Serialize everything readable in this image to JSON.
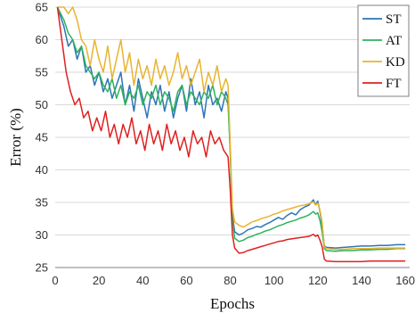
{
  "chart_data": {
    "type": "line",
    "title": "",
    "xlabel": "Epochs",
    "ylabel": "Error (%)",
    "xlim": [
      0,
      162
    ],
    "ylim": [
      25,
      65
    ],
    "xticks": [
      0,
      20,
      40,
      60,
      80,
      100,
      120,
      140,
      160
    ],
    "yticks": [
      25,
      30,
      35,
      40,
      45,
      50,
      55,
      60,
      65
    ],
    "grid": "horizontal",
    "legend_position": "top-right",
    "series": [
      {
        "name": "ST",
        "color": "#2e75b6",
        "points": [
          [
            1,
            65
          ],
          [
            4,
            62
          ],
          [
            6,
            59
          ],
          [
            8,
            60
          ],
          [
            10,
            57
          ],
          [
            12,
            59
          ],
          [
            14,
            55
          ],
          [
            16,
            56
          ],
          [
            18,
            53
          ],
          [
            20,
            55
          ],
          [
            22,
            52
          ],
          [
            24,
            54
          ],
          [
            26,
            51
          ],
          [
            28,
            53
          ],
          [
            30,
            55
          ],
          [
            32,
            50
          ],
          [
            34,
            53
          ],
          [
            36,
            49
          ],
          [
            38,
            54
          ],
          [
            40,
            51
          ],
          [
            42,
            48
          ],
          [
            44,
            52
          ],
          [
            46,
            50
          ],
          [
            48,
            53
          ],
          [
            50,
            49
          ],
          [
            52,
            52
          ],
          [
            54,
            48
          ],
          [
            56,
            51
          ],
          [
            58,
            53
          ],
          [
            60,
            49
          ],
          [
            62,
            54
          ],
          [
            64,
            50
          ],
          [
            66,
            52
          ],
          [
            68,
            48
          ],
          [
            70,
            53
          ],
          [
            72,
            50
          ],
          [
            74,
            51
          ],
          [
            76,
            49
          ],
          [
            78,
            52
          ],
          [
            79,
            51
          ],
          [
            80,
            43
          ],
          [
            81,
            33
          ],
          [
            82,
            30.5
          ],
          [
            84,
            30
          ],
          [
            86,
            30.3
          ],
          [
            88,
            30.8
          ],
          [
            90,
            31
          ],
          [
            92,
            31.3
          ],
          [
            94,
            31.2
          ],
          [
            96,
            31.6
          ],
          [
            98,
            31.9
          ],
          [
            100,
            32.3
          ],
          [
            102,
            32.7
          ],
          [
            104,
            32.4
          ],
          [
            106,
            33
          ],
          [
            108,
            33.4
          ],
          [
            110,
            33.1
          ],
          [
            112,
            33.9
          ],
          [
            114,
            34.3
          ],
          [
            116,
            34.6
          ],
          [
            118,
            35.4
          ],
          [
            119,
            34.6
          ],
          [
            120,
            35.2
          ],
          [
            121,
            33.6
          ],
          [
            122,
            31.5
          ],
          [
            123,
            28.3
          ],
          [
            124,
            28.1
          ],
          [
            128,
            28.0
          ],
          [
            132,
            28.1
          ],
          [
            136,
            28.2
          ],
          [
            140,
            28.3
          ],
          [
            144,
            28.3
          ],
          [
            148,
            28.4
          ],
          [
            152,
            28.4
          ],
          [
            156,
            28.5
          ],
          [
            160,
            28.5
          ]
        ]
      },
      {
        "name": "AT",
        "color": "#2db35a",
        "points": [
          [
            1,
            65
          ],
          [
            4,
            63
          ],
          [
            6,
            61
          ],
          [
            8,
            60
          ],
          [
            10,
            58
          ],
          [
            12,
            59
          ],
          [
            14,
            56
          ],
          [
            16,
            55
          ],
          [
            18,
            54
          ],
          [
            20,
            55
          ],
          [
            22,
            53
          ],
          [
            24,
            52
          ],
          [
            26,
            54
          ],
          [
            28,
            51
          ],
          [
            30,
            53
          ],
          [
            32,
            50
          ],
          [
            34,
            52
          ],
          [
            36,
            51
          ],
          [
            38,
            53
          ],
          [
            40,
            50
          ],
          [
            42,
            52
          ],
          [
            44,
            51
          ],
          [
            46,
            53
          ],
          [
            48,
            50
          ],
          [
            50,
            52
          ],
          [
            52,
            51
          ],
          [
            54,
            49
          ],
          [
            56,
            52
          ],
          [
            58,
            53
          ],
          [
            60,
            50
          ],
          [
            62,
            52
          ],
          [
            64,
            51
          ],
          [
            66,
            50
          ],
          [
            68,
            52
          ],
          [
            70,
            51
          ],
          [
            72,
            53
          ],
          [
            74,
            50
          ],
          [
            76,
            52
          ],
          [
            78,
            51
          ],
          [
            79,
            50
          ],
          [
            80,
            43
          ],
          [
            81,
            32.5
          ],
          [
            82,
            29.5
          ],
          [
            84,
            29
          ],
          [
            86,
            29.2
          ],
          [
            88,
            29.6
          ],
          [
            90,
            29.8
          ],
          [
            92,
            30.1
          ],
          [
            94,
            30.3
          ],
          [
            96,
            30.6
          ],
          [
            98,
            30.8
          ],
          [
            100,
            31.1
          ],
          [
            102,
            31.4
          ],
          [
            104,
            31.6
          ],
          [
            106,
            31.9
          ],
          [
            108,
            32.1
          ],
          [
            110,
            32.3
          ],
          [
            112,
            32.6
          ],
          [
            114,
            32.8
          ],
          [
            116,
            33.1
          ],
          [
            118,
            33.6
          ],
          [
            119,
            33.2
          ],
          [
            120,
            33.4
          ],
          [
            121,
            32.2
          ],
          [
            122,
            30.5
          ],
          [
            123,
            27.9
          ],
          [
            124,
            27.6
          ],
          [
            128,
            27.5
          ],
          [
            132,
            27.6
          ],
          [
            136,
            27.6
          ],
          [
            140,
            27.7
          ],
          [
            144,
            27.7
          ],
          [
            148,
            27.8
          ],
          [
            152,
            27.8
          ],
          [
            156,
            27.9
          ],
          [
            160,
            27.9
          ]
        ]
      },
      {
        "name": "KD",
        "color": "#e8b431",
        "points": [
          [
            1,
            65
          ],
          [
            4,
            65
          ],
          [
            6,
            64
          ],
          [
            8,
            65
          ],
          [
            10,
            63
          ],
          [
            12,
            60
          ],
          [
            14,
            59
          ],
          [
            16,
            56
          ],
          [
            18,
            60
          ],
          [
            20,
            57
          ],
          [
            22,
            55
          ],
          [
            24,
            59
          ],
          [
            26,
            54
          ],
          [
            28,
            57
          ],
          [
            30,
            60
          ],
          [
            32,
            55
          ],
          [
            34,
            58
          ],
          [
            36,
            53
          ],
          [
            38,
            57
          ],
          [
            40,
            54
          ],
          [
            42,
            56
          ],
          [
            44,
            53
          ],
          [
            46,
            57
          ],
          [
            48,
            54
          ],
          [
            50,
            56
          ],
          [
            52,
            53
          ],
          [
            54,
            55
          ],
          [
            56,
            58
          ],
          [
            58,
            54
          ],
          [
            60,
            56
          ],
          [
            62,
            53
          ],
          [
            64,
            55
          ],
          [
            66,
            57
          ],
          [
            68,
            52
          ],
          [
            70,
            55
          ],
          [
            72,
            53
          ],
          [
            74,
            56
          ],
          [
            76,
            52
          ],
          [
            78,
            54
          ],
          [
            79,
            53
          ],
          [
            80,
            44
          ],
          [
            81,
            34
          ],
          [
            82,
            32
          ],
          [
            84,
            31.5
          ],
          [
            86,
            31.2
          ],
          [
            88,
            31.6
          ],
          [
            90,
            32
          ],
          [
            92,
            32.2
          ],
          [
            94,
            32.5
          ],
          [
            96,
            32.7
          ],
          [
            98,
            32.9
          ],
          [
            100,
            33.2
          ],
          [
            102,
            33.4
          ],
          [
            104,
            33.7
          ],
          [
            106,
            33.9
          ],
          [
            108,
            34.1
          ],
          [
            110,
            34.3
          ],
          [
            112,
            34.5
          ],
          [
            114,
            34.6
          ],
          [
            116,
            34.8
          ],
          [
            118,
            35.1
          ],
          [
            119,
            34.6
          ],
          [
            120,
            34.9
          ],
          [
            121,
            33.8
          ],
          [
            122,
            32
          ],
          [
            123,
            28.2
          ],
          [
            124,
            27.9
          ],
          [
            128,
            27.8
          ],
          [
            132,
            27.8
          ],
          [
            136,
            27.9
          ],
          [
            140,
            27.9
          ],
          [
            144,
            27.9
          ],
          [
            148,
            28
          ],
          [
            152,
            28
          ],
          [
            156,
            28
          ],
          [
            160,
            28
          ]
        ]
      },
      {
        "name": "FT",
        "color": "#e02020",
        "points": [
          [
            1,
            65
          ],
          [
            3,
            60
          ],
          [
            5,
            55
          ],
          [
            7,
            52
          ],
          [
            9,
            50
          ],
          [
            11,
            51
          ],
          [
            13,
            48
          ],
          [
            15,
            49
          ],
          [
            17,
            46
          ],
          [
            19,
            48
          ],
          [
            21,
            46
          ],
          [
            23,
            49
          ],
          [
            25,
            45
          ],
          [
            27,
            47
          ],
          [
            29,
            44
          ],
          [
            31,
            47
          ],
          [
            33,
            45
          ],
          [
            35,
            48
          ],
          [
            37,
            44
          ],
          [
            39,
            46
          ],
          [
            41,
            43
          ],
          [
            43,
            47
          ],
          [
            45,
            44
          ],
          [
            47,
            46
          ],
          [
            49,
            43
          ],
          [
            51,
            47
          ],
          [
            53,
            44
          ],
          [
            55,
            46
          ],
          [
            57,
            43
          ],
          [
            59,
            45
          ],
          [
            61,
            42
          ],
          [
            63,
            46
          ],
          [
            65,
            44
          ],
          [
            67,
            45
          ],
          [
            69,
            42
          ],
          [
            71,
            46
          ],
          [
            73,
            44
          ],
          [
            75,
            45
          ],
          [
            77,
            43
          ],
          [
            79,
            42
          ],
          [
            80,
            37
          ],
          [
            81,
            30
          ],
          [
            82,
            28
          ],
          [
            84,
            27.2
          ],
          [
            86,
            27.3
          ],
          [
            88,
            27.6
          ],
          [
            90,
            27.8
          ],
          [
            92,
            28
          ],
          [
            94,
            28.2
          ],
          [
            96,
            28.4
          ],
          [
            98,
            28.6
          ],
          [
            100,
            28.8
          ],
          [
            102,
            29
          ],
          [
            104,
            29.1
          ],
          [
            106,
            29.3
          ],
          [
            108,
            29.4
          ],
          [
            110,
            29.5
          ],
          [
            112,
            29.6
          ],
          [
            114,
            29.7
          ],
          [
            116,
            29.8
          ],
          [
            118,
            30.1
          ],
          [
            119,
            29.8
          ],
          [
            120,
            30
          ],
          [
            121,
            29.2
          ],
          [
            122,
            28.2
          ],
          [
            123,
            26.3
          ],
          [
            124,
            26
          ],
          [
            128,
            25.9
          ],
          [
            132,
            25.9
          ],
          [
            136,
            25.9
          ],
          [
            140,
            25.9
          ],
          [
            144,
            26
          ],
          [
            148,
            26
          ],
          [
            152,
            26
          ],
          [
            156,
            26
          ],
          [
            160,
            26
          ]
        ]
      }
    ]
  }
}
